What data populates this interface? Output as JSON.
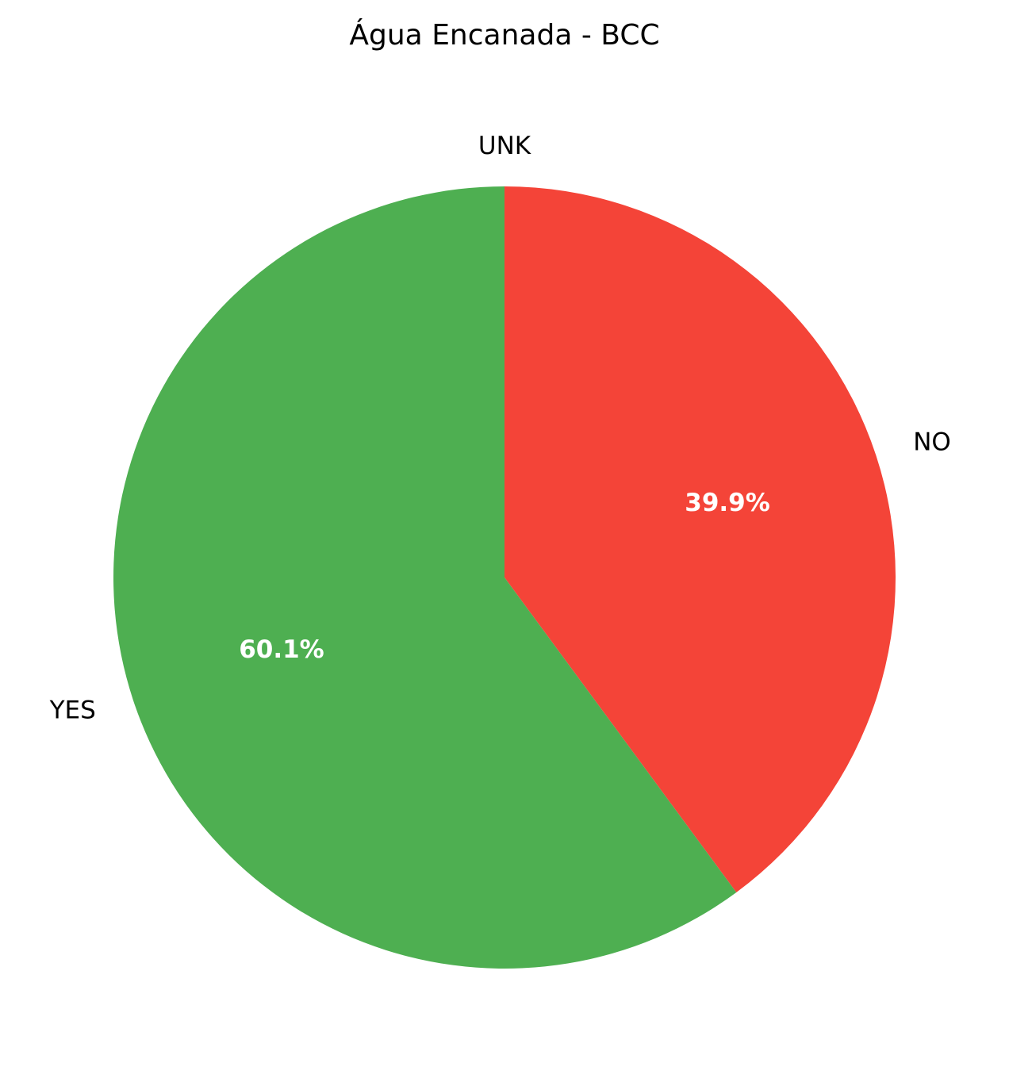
{
  "chart_data": {
    "type": "pie",
    "title": "Água Encanada - BCC",
    "slices": [
      {
        "label": "UNK",
        "value": 0.0,
        "percent_label": "",
        "color": "#9e9e9e"
      },
      {
        "label": "NO",
        "value": 39.9,
        "percent_label": "39.9%",
        "color": "#f44438"
      },
      {
        "label": "YES",
        "value": 60.1,
        "percent_label": "60.1%",
        "color": "#4eaf51"
      }
    ],
    "start_angle_deg": 90,
    "direction": "clockwise"
  }
}
